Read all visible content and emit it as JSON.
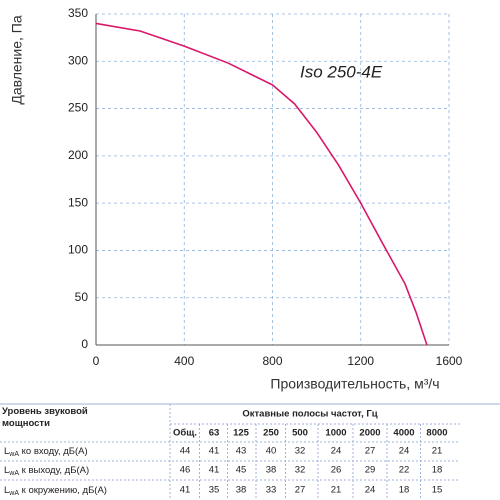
{
  "chart_data": {
    "type": "line",
    "annotation": "Iso 250-4E",
    "x_label": "Производительность, м³/ч",
    "y_label": "Давление, Па",
    "x": [
      0,
      200,
      400,
      600,
      800,
      900,
      1000,
      1100,
      1200,
      1300,
      1400,
      1450,
      1500
    ],
    "series": [
      {
        "color": "#d9186a",
        "values": [
          340,
          332,
          316,
          298,
          275,
          255,
          225,
          190,
          150,
          107,
          65,
          35,
          0
        ]
      }
    ],
    "xlim": [
      0,
      1600
    ],
    "xticks": [
      0,
      400,
      800,
      1200,
      1600
    ],
    "ylim": [
      0,
      350
    ],
    "yticks": [
      0,
      50,
      100,
      150,
      200,
      250,
      300,
      350
    ],
    "grid": true
  },
  "table": {
    "corner": "Уровень звуковой мощности",
    "group_header": "Октавные полосы частот, Гц",
    "columns": [
      "Общ.",
      "63",
      "125",
      "250",
      "500",
      "1000",
      "2000",
      "4000",
      "8000"
    ],
    "rows": [
      {
        "symbol": "L",
        "sub": "wA",
        "text": " ко входу, дБ(А)",
        "values": [
          "44",
          "41",
          "43",
          "40",
          "32",
          "24",
          "27",
          "24",
          "21"
        ]
      },
      {
        "symbol": "L",
        "sub": "wA",
        "text": " к выходу, дБ(А)",
        "values": [
          "46",
          "41",
          "45",
          "38",
          "32",
          "26",
          "29",
          "22",
          "18"
        ]
      },
      {
        "symbol": "L",
        "sub": "wA",
        "text": " к окружению, дБ(А)",
        "values": [
          "41",
          "35",
          "38",
          "33",
          "27",
          "21",
          "24",
          "18",
          "15"
        ]
      }
    ]
  }
}
